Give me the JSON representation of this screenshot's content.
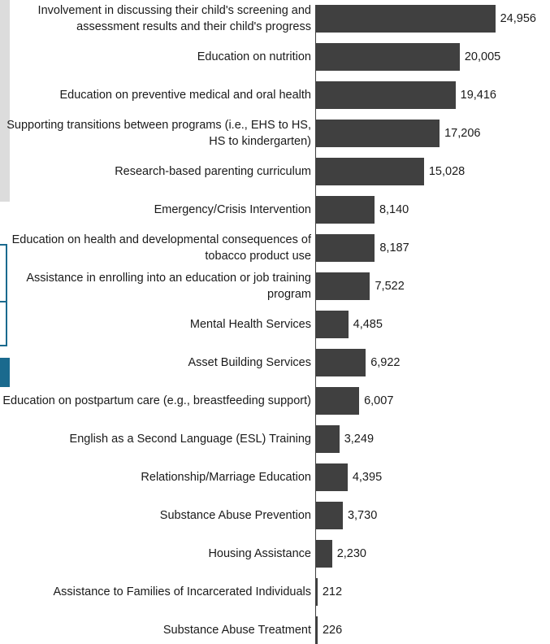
{
  "chart_data": {
    "type": "bar",
    "orientation": "horizontal",
    "title": "",
    "xlabel": "",
    "ylabel": "",
    "xlim": [
      0,
      25000
    ],
    "grid": false,
    "bar_color": "#404040",
    "categories": [
      "Involvement in discussing their child's screening and assessment results and their child's progress",
      "Education on nutrition",
      "Education on preventive medical and oral health",
      "Supporting transitions between programs (i.e., EHS to HS, HS to kindergarten)",
      "Research-based parenting curriculum",
      "Emergency/Crisis Intervention",
      "Education on health and developmental consequences of tobacco product use",
      "Assistance in enrolling into an education or job training program",
      "Mental Health Services",
      "Asset Building Services",
      "Education on postpartum care (e.g., breastfeeding support)",
      "English as a Second Language (ESL) Training",
      "Relationship/Marriage Education",
      "Substance Abuse Prevention",
      "Housing Assistance",
      "Assistance to Families of Incarcerated Individuals",
      "Substance Abuse Treatment"
    ],
    "values": [
      24956,
      20005,
      19416,
      17206,
      15028,
      8140,
      8187,
      7522,
      4485,
      6922,
      6007,
      3249,
      4395,
      3730,
      2230,
      212,
      226
    ],
    "value_labels": [
      "24,956",
      "20,005",
      "19,416",
      "17,206",
      "15,028",
      "8,140",
      "8,187",
      "7,522",
      "4,485",
      "6,922",
      "6,007",
      "3,249",
      "4,395",
      "3,730",
      "2,230",
      "212",
      "226"
    ]
  }
}
